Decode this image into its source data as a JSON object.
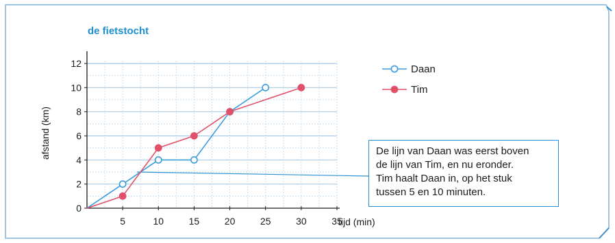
{
  "chart_data": {
    "type": "line",
    "title": "de fietstocht",
    "xlabel": "tijd (min)",
    "ylabel": "afstand (km)",
    "x_ticks": [
      "5",
      "10",
      "15",
      "20",
      "25",
      "30",
      "35"
    ],
    "y_ticks": [
      "0",
      "2",
      "4",
      "6",
      "8",
      "10",
      "12"
    ],
    "xlim": [
      0,
      35
    ],
    "ylim": [
      0,
      12
    ],
    "grid": true,
    "legend_position": "right",
    "series": [
      {
        "name": "Daan",
        "color": "#3a9bdc",
        "marker": "open-circle",
        "x": [
          0,
          5,
          10,
          15,
          20,
          25
        ],
        "y": [
          0,
          2,
          4,
          4,
          8,
          10
        ]
      },
      {
        "name": "Tim",
        "color": "#e0506a",
        "marker": "filled-circle",
        "x": [
          0,
          5,
          10,
          15,
          20,
          30
        ],
        "y": [
          0,
          1,
          5,
          6,
          8,
          10
        ]
      }
    ],
    "annotation": {
      "lines": [
        "De lijn van Daan was eerst boven",
        "de lijn van Tim, en nu eronder.",
        "Tim haalt Daan in, op het stuk",
        "tussen 5 en 10 minuten."
      ]
    }
  },
  "colors": {
    "frame": "#3a8ec9",
    "grid": "#a8cbe6",
    "gridline_dotted": "#c9dff0",
    "title": "#1e8fcf"
  }
}
